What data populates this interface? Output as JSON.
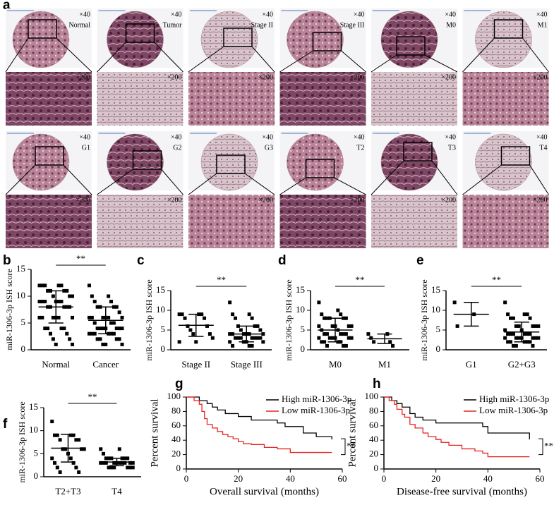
{
  "panel_a": {
    "label": "a",
    "tiles": [
      {
        "name": "Normal",
        "low": "×40",
        "high": "×200"
      },
      {
        "name": "Tumor",
        "low": "×40",
        "high": "×200"
      },
      {
        "name": "Stage II",
        "low": "×40",
        "high": "×200"
      },
      {
        "name": "Stage III",
        "low": "×40",
        "high": "×200"
      },
      {
        "name": "M0",
        "low": "×40",
        "high": "×200"
      },
      {
        "name": "M1",
        "low": "×40",
        "high": "×200"
      },
      {
        "name": "G1",
        "low": "×40",
        "high": "×200"
      },
      {
        "name": "G2",
        "low": "×40",
        "high": "×200"
      },
      {
        "name": "G3",
        "low": "×40",
        "high": "×200"
      },
      {
        "name": "T2",
        "low": "×40",
        "high": "×200"
      },
      {
        "name": "T3",
        "low": "×40",
        "high": "×200"
      },
      {
        "name": "T4",
        "low": "×40",
        "high": "×200"
      }
    ]
  },
  "chart_data": [
    {
      "type": "strip",
      "label": "b",
      "y_label": "miR-1306-3p ISH score",
      "categories": [
        "Normal",
        "Cancer"
      ],
      "values": [
        [
          12,
          12,
          12,
          12,
          12,
          11,
          11,
          11,
          11,
          10,
          10,
          10,
          9,
          9,
          9,
          9,
          9,
          9,
          8,
          8,
          8,
          8,
          8,
          6,
          6,
          6,
          6,
          6,
          6,
          4,
          4,
          4,
          4,
          3,
          3,
          2,
          2,
          1,
          1
        ],
        [
          12,
          10,
          10,
          9,
          9,
          8,
          8,
          8,
          8,
          7,
          6,
          6,
          6,
          6,
          6,
          6,
          5,
          5,
          5,
          4,
          4,
          4,
          4,
          4,
          4,
          4,
          3,
          3,
          3,
          3,
          3,
          3,
          2,
          2,
          2,
          2,
          1,
          1,
          1
        ]
      ],
      "mean": [
        8,
        5.5
      ],
      "sd": [
        3,
        2.5
      ],
      "ylim": [
        0,
        15
      ],
      "yticks": [
        0,
        5,
        10,
        15
      ],
      "significance": "**"
    },
    {
      "type": "strip",
      "label": "c",
      "y_label": "miR-1306-3p ISH score",
      "categories": [
        "Stage II",
        "Stage III"
      ],
      "values": [
        [
          9,
          9,
          9,
          9,
          8,
          8,
          6,
          6,
          5,
          4,
          4,
          3,
          2,
          2
        ],
        [
          12,
          9,
          9,
          8,
          8,
          6,
          6,
          6,
          5,
          5,
          4,
          4,
          4,
          4,
          4,
          4,
          3,
          3,
          3,
          3,
          3,
          3,
          3,
          2,
          2,
          2,
          2,
          1,
          1,
          1
        ]
      ],
      "mean": [
        6.2,
        4
      ],
      "sd": [
        2.8,
        2
      ],
      "ylim": [
        0,
        15
      ],
      "yticks": [
        0,
        5,
        10,
        15
      ],
      "significance": "**"
    },
    {
      "type": "strip",
      "label": "d",
      "y_label": "miR-1306-3p ISH score",
      "categories": [
        "M0",
        "M1"
      ],
      "values": [
        [
          12,
          10,
          9,
          9,
          8,
          8,
          8,
          8,
          8,
          6,
          6,
          6,
          6,
          6,
          5,
          5,
          4,
          4,
          4,
          4,
          4,
          3,
          3,
          3,
          3,
          3,
          3,
          2,
          2,
          2,
          2,
          1,
          1,
          1
        ],
        [
          4,
          4,
          3,
          2,
          2,
          1
        ]
      ],
      "mean": [
        5,
        2.8
      ],
      "sd": [
        3,
        1.2
      ],
      "ylim": [
        0,
        15
      ],
      "yticks": [
        0,
        5,
        10,
        15
      ],
      "significance": "**"
    },
    {
      "type": "strip",
      "label": "e",
      "y_label": "miR-1306-3p ISH score",
      "categories": [
        "G1",
        "G2+G3"
      ],
      "values": [
        [
          12,
          9,
          6
        ],
        [
          12,
          9,
          9,
          9,
          8,
          8,
          8,
          6,
          6,
          6,
          6,
          6,
          5,
          5,
          4,
          4,
          4,
          4,
          4,
          4,
          3,
          3,
          3,
          3,
          3,
          3,
          3,
          2,
          2,
          2,
          2,
          2,
          1,
          1,
          1
        ]
      ],
      "mean": [
        9,
        4.5
      ],
      "sd": [
        3,
        2.5
      ],
      "ylim": [
        0,
        15
      ],
      "yticks": [
        0,
        5,
        10,
        15
      ],
      "significance": "**"
    },
    {
      "type": "strip",
      "label": "f",
      "y_label": "miR-1306-3p ISH score",
      "categories": [
        "T2+T3",
        "T4"
      ],
      "values": [
        [
          12,
          9,
          9,
          9,
          9,
          8,
          8,
          8,
          6,
          6,
          6,
          6,
          5,
          4,
          4,
          3,
          3,
          2,
          2,
          1,
          1
        ],
        [
          6,
          6,
          5,
          4,
          4,
          4,
          4,
          4,
          4,
          3,
          3,
          3,
          3,
          3,
          3,
          3,
          3,
          3,
          3,
          2,
          2,
          2,
          2,
          2,
          2
        ]
      ],
      "mean": [
        6.2,
        3.2
      ],
      "sd": [
        3,
        0.8
      ],
      "ylim": [
        0,
        15
      ],
      "yticks": [
        0,
        5,
        10,
        15
      ],
      "significance": "**"
    },
    {
      "type": "line",
      "label": "g",
      "y_label": "Percent survival",
      "x_label": "Overall survival (months)",
      "xlim": [
        0,
        60
      ],
      "xticks": [
        0,
        20,
        40,
        60
      ],
      "ylim": [
        0,
        100
      ],
      "yticks": [
        0,
        20,
        40,
        60,
        80,
        100
      ],
      "significance": "**",
      "series": [
        {
          "name": "High miR-1306-3p",
          "color": "#000000",
          "x": [
            0,
            3,
            5,
            8,
            10,
            12,
            15,
            20,
            25,
            35,
            38,
            45,
            50,
            56
          ],
          "values": [
            100,
            100,
            95,
            91,
            86,
            82,
            77,
            73,
            68,
            64,
            59,
            50,
            45,
            41
          ]
        },
        {
          "name": "Low miR-1306-3p",
          "color": "#e8231f",
          "x": [
            0,
            3,
            5,
            6,
            7,
            8,
            10,
            12,
            14,
            16,
            18,
            20,
            22,
            25,
            30,
            35,
            40,
            56
          ],
          "values": [
            100,
            95,
            90,
            80,
            70,
            62,
            57,
            52,
            48,
            45,
            42,
            38,
            35,
            34,
            30,
            28,
            23,
            23
          ]
        }
      ]
    },
    {
      "type": "line",
      "label": "h",
      "y_label": "Percent survival",
      "x_label": "Disease-free survival (months)",
      "xlim": [
        0,
        60
      ],
      "xticks": [
        0,
        20,
        40,
        60
      ],
      "ylim": [
        0,
        100
      ],
      "yticks": [
        0,
        20,
        40,
        60,
        80,
        100
      ],
      "significance": "**",
      "series": [
        {
          "name": "High miR-1306-3p",
          "color": "#000000",
          "x": [
            0,
            3,
            5,
            7,
            10,
            12,
            15,
            20,
            38,
            40,
            56
          ],
          "values": [
            100,
            95,
            91,
            86,
            77,
            72,
            68,
            64,
            59,
            50,
            41
          ]
        },
        {
          "name": "Low miR-1306-3p",
          "color": "#e8231f",
          "x": [
            0,
            2,
            4,
            5,
            7,
            8,
            10,
            12,
            15,
            17,
            20,
            22,
            25,
            30,
            35,
            38,
            40,
            56
          ],
          "values": [
            100,
            95,
            90,
            83,
            76,
            72,
            62,
            57,
            50,
            45,
            41,
            37,
            33,
            28,
            25,
            22,
            17,
            17
          ]
        }
      ]
    }
  ]
}
